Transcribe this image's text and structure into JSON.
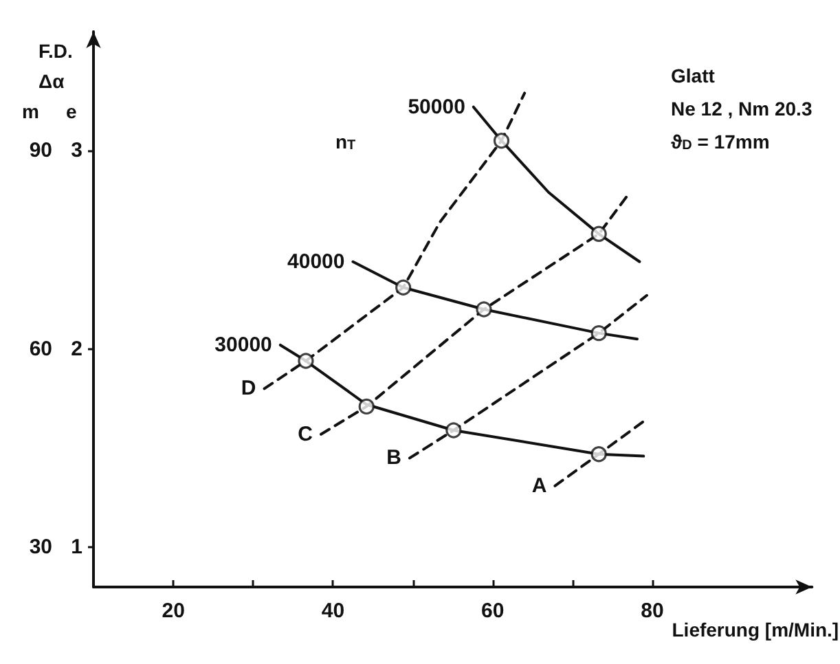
{
  "chart_data": {
    "type": "line",
    "xlabel": "Lieferung [m/Min.]",
    "ylabel": "e",
    "y2label": "m",
    "annotations": [
      "F.D.",
      "Δα",
      "n$_{T}$",
      "Glatt",
      "Ne 12 , Nm 20.3",
      "ϑ$_{D}$ = 17mm"
    ],
    "xlim": [
      10,
      100
    ],
    "xticks": [
      20,
      {
        "value": 30,
        "label": null
      },
      40,
      {
        "value": 50,
        "label": null
      },
      60,
      {
        "value": 70,
        "label": null
      },
      80
    ],
    "ylim": [
      0.8,
      3.6
    ],
    "yticks": [
      1,
      2,
      3
    ],
    "y2lim": [
      24,
      108
    ],
    "y2ticks": [
      30,
      60,
      90
    ],
    "grid": false,
    "series": [
      {
        "name": "30000",
        "color": "#111111",
        "line_style": "solid",
        "marker": "none",
        "x": [
          33.4,
          36.6,
          44.2,
          55.1,
          73.3,
          78.9
        ],
        "values": [
          2.02,
          1.94,
          1.72,
          1.59,
          1.47,
          1.46
        ]
      },
      {
        "name": "40000",
        "color": "#111111",
        "line_style": "solid",
        "marker": "none",
        "x": [
          42.5,
          48.8,
          58.9,
          73.3,
          78.1
        ],
        "values": [
          2.44,
          2.31,
          2.2,
          2.08,
          2.05
        ]
      },
      {
        "name": "50000",
        "color": "#111111",
        "line_style": "solid",
        "marker": "none",
        "x": [
          57.6,
          61.1,
          67.0,
          73.3,
          78.4
        ],
        "values": [
          3.22,
          3.05,
          2.79,
          2.58,
          2.44
        ]
      },
      {
        "name": "D",
        "color": "#111111",
        "line_style": "dashed",
        "marker": "none",
        "x": [
          31.4,
          36.6,
          48.8,
          53.4,
          61.1,
          64.0
        ],
        "values": [
          1.8,
          1.94,
          2.31,
          2.64,
          3.05,
          3.29
        ]
      },
      {
        "name": "C",
        "color": "#111111",
        "line_style": "dashed",
        "marker": "none",
        "x": [
          38.5,
          44.2,
          58.9,
          73.3,
          77.0
        ],
        "values": [
          1.57,
          1.71,
          2.2,
          2.58,
          2.78
        ]
      },
      {
        "name": "B",
        "color": "#111111",
        "line_style": "dashed",
        "marker": "none",
        "x": [
          49.6,
          55.1,
          73.3,
          79.3
        ],
        "values": [
          1.45,
          1.59,
          2.08,
          2.27
        ]
      },
      {
        "name": "A",
        "color": "#111111",
        "line_style": "dashed",
        "marker": "none",
        "x": [
          67.8,
          73.3,
          79.4
        ],
        "values": [
          1.31,
          1.47,
          1.65
        ]
      },
      {
        "type": "scatter",
        "color": "#111111",
        "marker": "circle",
        "x": [
          36.6,
          44.2,
          55.1,
          73.3,
          48.8,
          58.9,
          73.3,
          61.1,
          73.3
        ],
        "values": [
          1.94,
          1.71,
          1.59,
          1.47,
          2.31,
          2.2,
          2.08,
          3.05,
          2.58
        ]
      }
    ]
  }
}
